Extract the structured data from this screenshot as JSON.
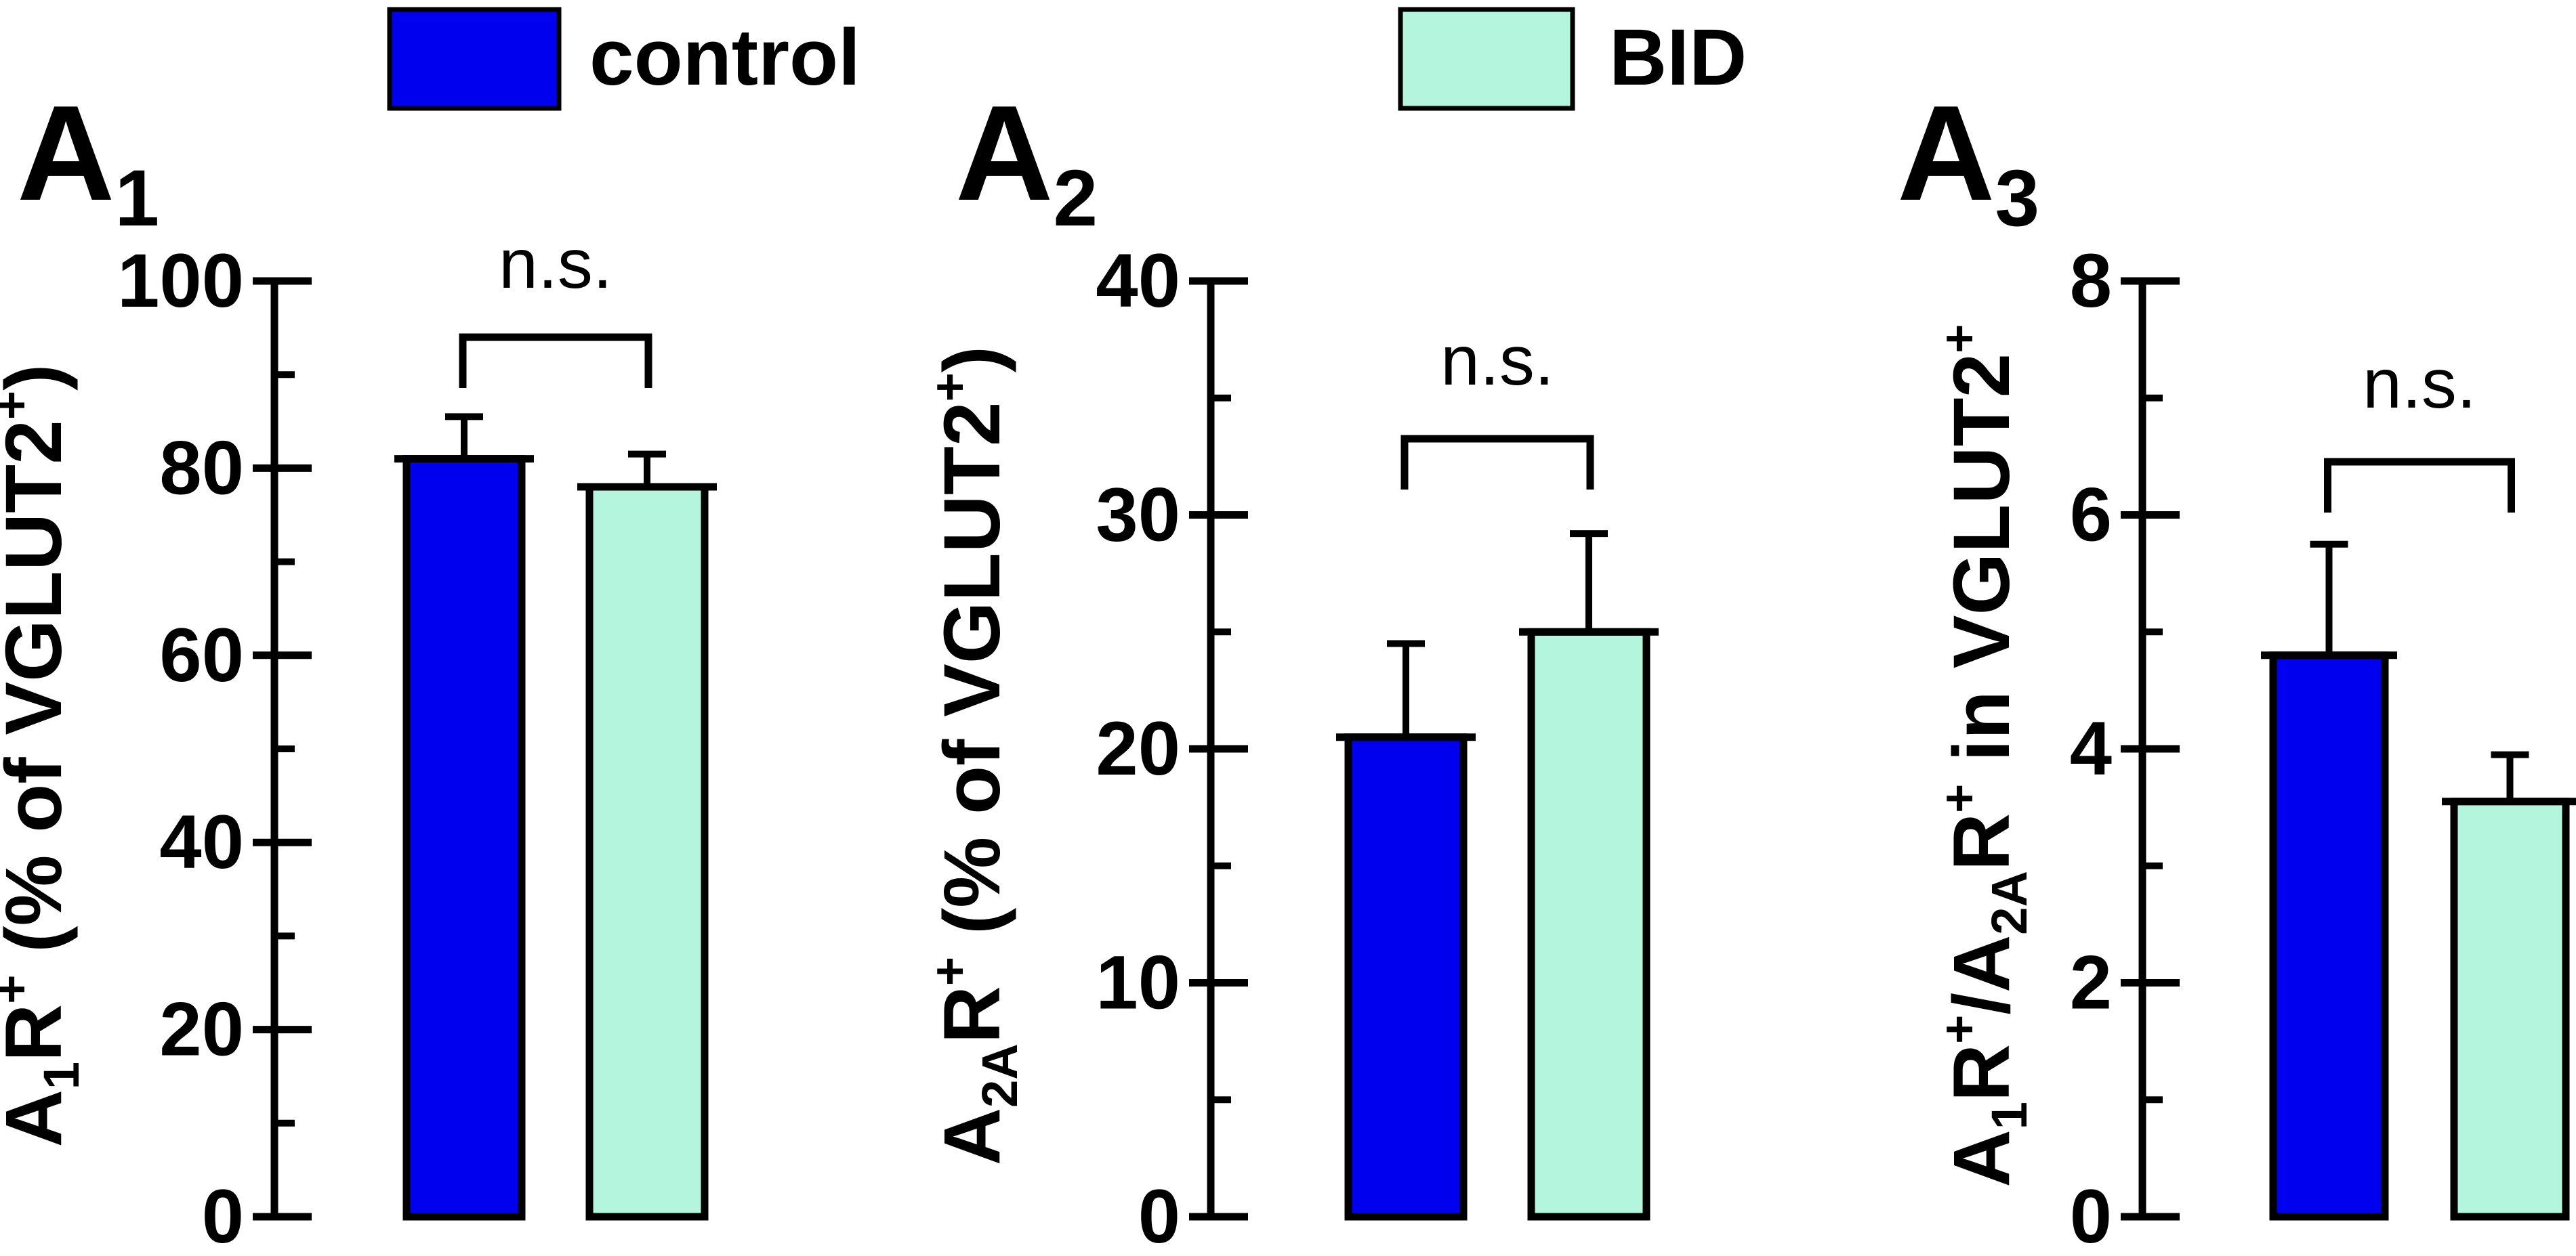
{
  "legend": {
    "items": [
      {
        "label": "control",
        "color": "#0000ee"
      },
      {
        "label": "BID",
        "color": "#b3f5dd"
      }
    ]
  },
  "significance_label": "n.s.",
  "chart_data": [
    {
      "type": "bar",
      "panel_label": "A",
      "panel_sub": "1",
      "categories": [
        "control",
        "BID"
      ],
      "values": [
        81,
        78
      ],
      "errors": [
        4.5,
        3.5
      ],
      "ylabel": {
        "base": "A",
        "sub1": "1",
        "r": "R",
        "sup1": "+",
        "rest": " (% of VGLUT2",
        "sup2": "+",
        "end": ")"
      },
      "ylim": [
        0,
        100
      ],
      "major_ticks": [
        0,
        20,
        40,
        60,
        80,
        100
      ],
      "minor_step": 10,
      "annotation": "n.s."
    },
    {
      "type": "bar",
      "panel_label": "A",
      "panel_sub": "2",
      "categories": [
        "control",
        "BID"
      ],
      "values": [
        20.5,
        25
      ],
      "errors": [
        4,
        4.2
      ],
      "ylabel": {
        "base": "A",
        "sub1": "2A",
        "r": "R",
        "sup1": "+",
        "rest": " (% of VGLUT2",
        "sup2": "+",
        "end": ")"
      },
      "ylim": [
        0,
        40
      ],
      "major_ticks": [
        0,
        10,
        20,
        30,
        40
      ],
      "minor_step": 5,
      "annotation": "n.s."
    },
    {
      "type": "bar",
      "panel_label": "A",
      "panel_sub": "3",
      "categories": [
        "control",
        "BID"
      ],
      "values": [
        4.8,
        3.55
      ],
      "errors": [
        0.95,
        0.4
      ],
      "ylabel": {
        "base": "A",
        "sub1": "1",
        "r": "R",
        "sup1": "+",
        "slash": "/A",
        "sub2": "2A",
        "r2": "R",
        "sup2": "+",
        "rest": " in VGLUT2",
        "sup3": "+"
      },
      "ylim": [
        0,
        8
      ],
      "major_ticks": [
        0,
        2,
        4,
        6,
        8
      ],
      "minor_step": 1,
      "annotation": "n.s."
    }
  ]
}
